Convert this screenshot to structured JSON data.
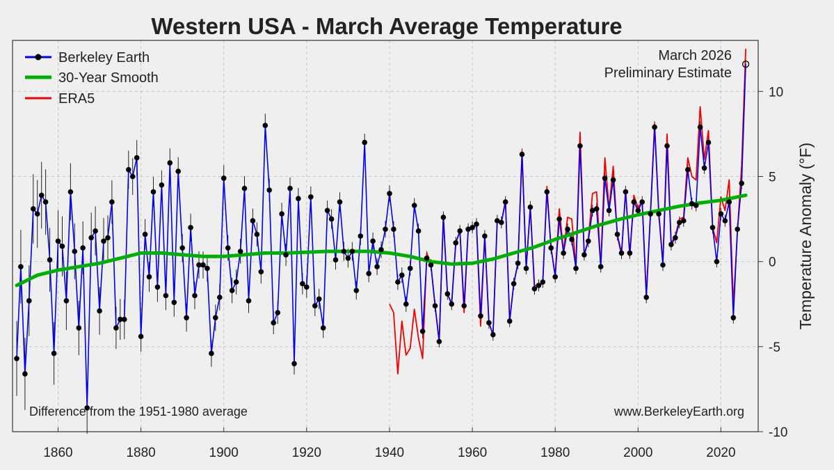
{
  "chart_data": {
    "type": "line",
    "title": "Western USA - March Average Temperature",
    "ylabel": "Temperature  Anomaly  (°F)",
    "xlabel": "",
    "xlim": [
      1849,
      2029
    ],
    "ylim": [
      -10,
      13
    ],
    "x_ticks": [
      1860,
      1880,
      1900,
      1920,
      1940,
      1960,
      1980,
      2000,
      2020
    ],
    "y_ticks": [
      -10,
      -5,
      0,
      5,
      10
    ],
    "grid": true,
    "legend_position": "top-left",
    "colors": {
      "berkeley": "#0000ee",
      "smooth": "#00b000",
      "era5": "#ee0000",
      "background": "#efefef"
    },
    "annotation_top_right": [
      "March 2026",
      "Preliminary Estimate"
    ],
    "note_bottom_left": "Difference from the 1951-1980 average",
    "note_bottom_right": "www.BerkeleyEarth.org",
    "preliminary_point": {
      "x": 2026,
      "y": 11.6
    },
    "series": [
      {
        "name": "Berkeley Earth",
        "start_year": 1850,
        "values": [
          -5.7,
          -0.3,
          -6.6,
          -2.3,
          3.1,
          2.8,
          3.9,
          3.5,
          0.1,
          -5.4,
          1.2,
          0.9,
          -2.3,
          4.1,
          0.6,
          -3.9,
          0.8,
          -8.6,
          1.4,
          1.8,
          -2.9,
          1.2,
          1.4,
          3.5,
          -3.9,
          -3.4,
          -3.4,
          5.4,
          5.0,
          6.1,
          -4.4,
          1.6,
          -0.9,
          4.1,
          -1.5,
          4.5,
          -2.0,
          5.8,
          -2.4,
          5.3,
          0.8,
          -3.3,
          2.0,
          -2.0,
          -0.2,
          -0.2,
          -0.4,
          -5.4,
          -3.3,
          -2.1,
          4.9,
          0.8,
          -1.7,
          -1.2,
          0.6,
          4.3,
          -2.3,
          2.4,
          1.6,
          -0.6,
          8.0,
          4.2,
          -3.6,
          -3.0,
          2.8,
          0.4,
          4.3,
          -6.0,
          3.7,
          -1.3,
          -1.5,
          3.8,
          -2.6,
          -2.2,
          -3.9,
          3.0,
          2.5,
          0.1,
          3.5,
          0.6,
          0.2,
          0.6,
          -1.7,
          1.5,
          7.0,
          -0.7,
          1.2,
          -0.3,
          0.7,
          1.9,
          4.0,
          1.9,
          -1.2,
          -0.8,
          -2.5,
          -0.4,
          3.3,
          1.8,
          -4.1,
          0.2,
          -0.2,
          -2.6,
          -4.7,
          2.6,
          -1.9,
          -2.5,
          1.1,
          1.8,
          -2.6,
          1.9,
          2.0,
          2.2,
          -3.2,
          1.5,
          -3.6,
          -4.3,
          2.4,
          2.3,
          3.5,
          -3.5,
          -1.3,
          -0.1,
          6.3,
          -0.4,
          3.2,
          -1.6,
          -1.4,
          -1.2,
          4.1,
          0.8,
          -0.9,
          2.5,
          0.5,
          1.9,
          1.3,
          -0.4,
          6.8,
          0.4,
          1.2,
          3.0,
          3.1,
          -0.3,
          4.9,
          3.0,
          4.8,
          1.6,
          0.5,
          4.1,
          0.5,
          3.5,
          3.0,
          3.5,
          -2.1,
          2.8,
          7.9,
          2.8,
          -0.2,
          6.8,
          1.0,
          1.4,
          2.3,
          2.4,
          5.4,
          3.4,
          3.3,
          7.9,
          5.5,
          7.0,
          2.0,
          0.0,
          2.8,
          2.4,
          3.5,
          -3.3,
          1.9,
          4.6,
          11.6
        ]
      },
      {
        "name": "30-Year Smooth",
        "points": [
          [
            1850,
            -1.4
          ],
          [
            1855,
            -0.8
          ],
          [
            1860,
            -0.5
          ],
          [
            1865,
            -0.3
          ],
          [
            1870,
            -0.1
          ],
          [
            1875,
            0.2
          ],
          [
            1880,
            0.5
          ],
          [
            1885,
            0.5
          ],
          [
            1890,
            0.4
          ],
          [
            1895,
            0.3
          ],
          [
            1900,
            0.3
          ],
          [
            1905,
            0.4
          ],
          [
            1910,
            0.5
          ],
          [
            1915,
            0.5
          ],
          [
            1920,
            0.55
          ],
          [
            1925,
            0.6
          ],
          [
            1930,
            0.6
          ],
          [
            1935,
            0.6
          ],
          [
            1940,
            0.5
          ],
          [
            1945,
            0.3
          ],
          [
            1950,
            0.0
          ],
          [
            1955,
            -0.15
          ],
          [
            1960,
            -0.1
          ],
          [
            1965,
            0.15
          ],
          [
            1970,
            0.5
          ],
          [
            1975,
            0.85
          ],
          [
            1980,
            1.3
          ],
          [
            1985,
            1.7
          ],
          [
            1990,
            2.1
          ],
          [
            1995,
            2.45
          ],
          [
            2000,
            2.75
          ],
          [
            2005,
            3.0
          ],
          [
            2010,
            3.25
          ],
          [
            2015,
            3.45
          ],
          [
            2020,
            3.6
          ],
          [
            2026,
            3.9
          ]
        ]
      },
      {
        "name": "ERA5",
        "start_year": 1940,
        "values": [
          -2.5,
          -3.0,
          -6.6,
          -3.5,
          -5.5,
          -5.1,
          -2.8,
          -4.5,
          -5.7,
          0.5,
          -0.2,
          -2.6,
          -4.7,
          2.7,
          -1.9,
          -2.5,
          1.1,
          1.8,
          -3.0,
          1.9,
          2.0,
          2.2,
          -3.8,
          1.5,
          -3.6,
          -4.3,
          2.4,
          2.3,
          3.6,
          -3.5,
          -1.3,
          -0.1,
          6.5,
          -0.4,
          3.2,
          -1.4,
          -1.4,
          -1.3,
          4.4,
          0.8,
          -0.8,
          3.1,
          0.6,
          2.6,
          2.5,
          -0.3,
          7.6,
          0.4,
          1.3,
          4.0,
          4.1,
          -0.3,
          6.1,
          3.1,
          5.6,
          1.5,
          0.4,
          4.2,
          0.3,
          3.9,
          3.1,
          3.6,
          -2.0,
          2.9,
          8.1,
          2.9,
          -0.1,
          7.5,
          1.1,
          1.5,
          2.5,
          2.6,
          6.1,
          5.0,
          4.8,
          9.1,
          6.0,
          7.7,
          2.0,
          1.1,
          3.8,
          3.0,
          4.8,
          -2.6,
          1.8,
          5.6,
          12.5
        ]
      }
    ]
  }
}
